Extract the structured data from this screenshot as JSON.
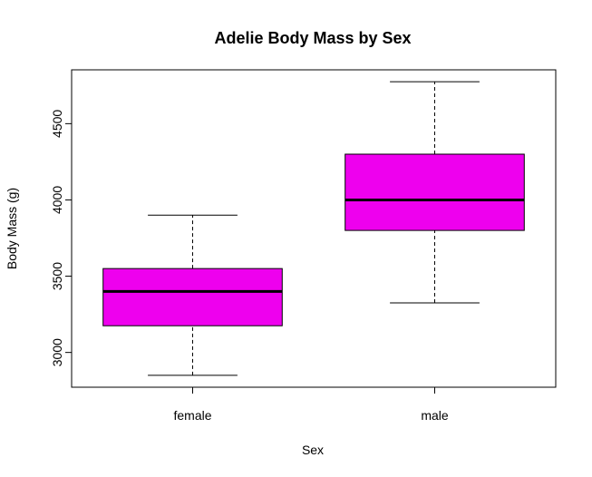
{
  "chart_data": {
    "type": "boxplot",
    "title": "Adelie Body Mass by Sex",
    "xlabel": "Sex",
    "ylabel": "Body Mass (g)",
    "categories": [
      "female",
      "male"
    ],
    "boxes": [
      {
        "category": "female",
        "min": 2850,
        "q1": 3175,
        "median": 3400,
        "q3": 3550,
        "max": 3900
      },
      {
        "category": "male",
        "min": 3325,
        "q1": 3800,
        "median": 4000,
        "q3": 4300,
        "max": 4775
      }
    ],
    "y_ticks": [
      3000,
      3500,
      4000,
      4500
    ],
    "ylim": [
      2772,
      4853
    ],
    "box_color": "#EE00EE",
    "grid": false
  }
}
